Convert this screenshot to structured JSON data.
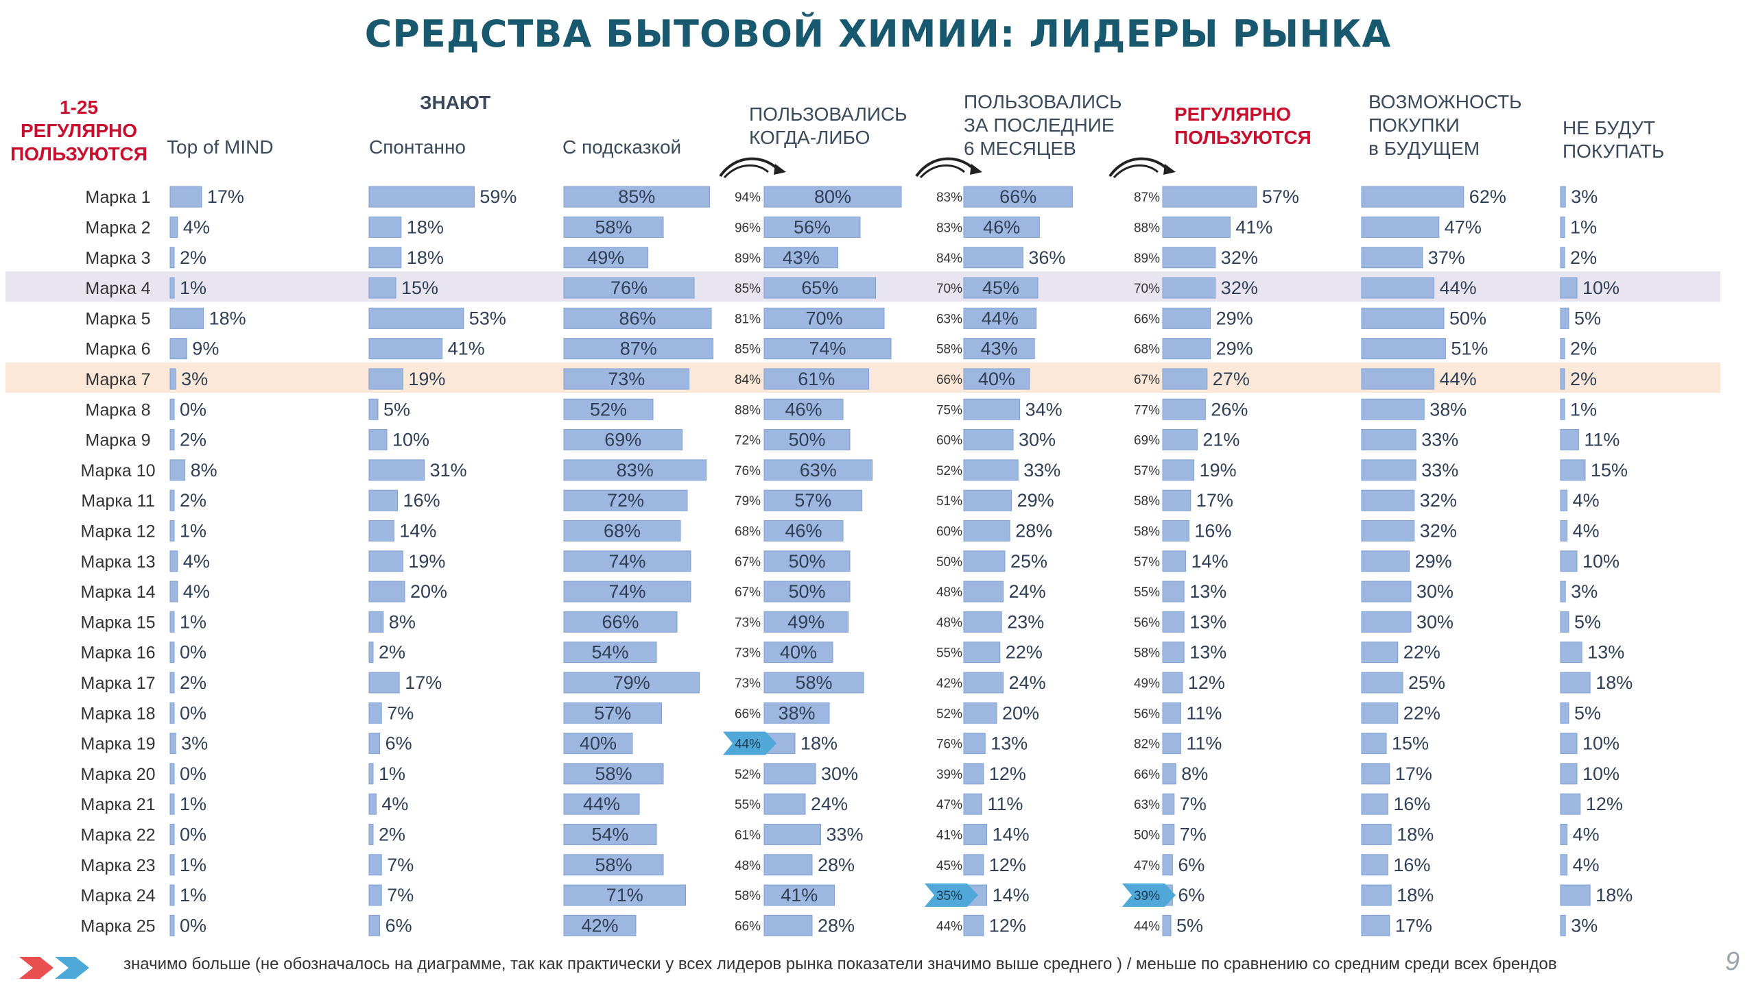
{
  "title": "СРЕДСТВА БЫТОВОЙ ХИМИИ: ЛИДЕРЫ РЫНКА",
  "headers": {
    "brands_col": "1-25\nРЕГУЛЯРНО\nПОЛЬЗУЮТСЯ",
    "group_know": "ЗНАЮТ",
    "top_of_mind": "Top of MIND",
    "spont": "Спонтанно",
    "aided": "С подсказкой",
    "ever": "ПОЛЬЗОВАЛИСЬ\nКОГДА-ЛИБО",
    "last6": "ПОЛЬЗОВАЛИСЬ\nЗА ПОСЛЕДНИЕ\n6 МЕСЯЦЕВ",
    "regular": "РЕГУЛЯРНО\nПОЛЬЗУЮТСЯ",
    "future": "ВОЗМОЖНОСТЬ\nПОКУПКИ\nв БУДУЩЕМ",
    "not_buy": "НЕ БУДУТ\nПОКУПАТЬ"
  },
  "footnote": "значимо больше (не обозначалось на диаграмме, так как практически у всех лидеров рынка показатели значимо выше среднего ) / меньше по сравнению со средним среди всех брендов",
  "page_number": "9",
  "colors": {
    "bar": "#9db7e0",
    "bar_border": "#7f9fcf",
    "highlight_row_4": "#e8e4f0",
    "highlight_row_7": "#fbe8d8",
    "title": "#19596f",
    "red": "#c8102e",
    "chevron_red": "#e8504f",
    "chevron_blue": "#4fa8d8"
  },
  "chart_data": {
    "type": "bar",
    "categories": [
      "Марка 1",
      "Марка 2",
      "Марка 3",
      "Марка 4",
      "Марка 5",
      "Марка 6",
      "Марка 7",
      "Марка 8",
      "Марка 9",
      "Марка 10",
      "Марка 11",
      "Марка 12",
      "Марка 13",
      "Марка 14",
      "Марка 15",
      "Марка 16",
      "Марка 17",
      "Марка 18",
      "Марка 19",
      "Марка 20",
      "Марка 21",
      "Марка 22",
      "Марка 23",
      "Марка 24",
      "Марка 25"
    ],
    "highlighted_rows": [
      "Марка 4",
      "Марка 7"
    ],
    "series": [
      {
        "name": "Top of MIND",
        "values": [
          17,
          4,
          2,
          1,
          18,
          9,
          3,
          0,
          2,
          8,
          2,
          1,
          4,
          4,
          1,
          0,
          2,
          0,
          3,
          0,
          1,
          0,
          1,
          1,
          0
        ]
      },
      {
        "name": "Спонтанно",
        "values": [
          59,
          18,
          18,
          15,
          53,
          41,
          19,
          5,
          10,
          31,
          16,
          14,
          19,
          20,
          8,
          2,
          17,
          7,
          6,
          1,
          4,
          2,
          7,
          7,
          6
        ]
      },
      {
        "name": "С подсказкой",
        "values": [
          85,
          58,
          49,
          76,
          86,
          87,
          73,
          52,
          69,
          83,
          72,
          68,
          74,
          74,
          66,
          54,
          79,
          57,
          40,
          58,
          44,
          54,
          58,
          71,
          42
        ]
      },
      {
        "name": "ПОЛЬЗОВАЛИСЬ КОГДА-ЛИБО",
        "values": [
          80,
          56,
          43,
          65,
          70,
          74,
          61,
          46,
          50,
          63,
          57,
          46,
          50,
          50,
          49,
          40,
          58,
          38,
          18,
          30,
          24,
          33,
          28,
          41,
          28
        ]
      },
      {
        "name": "ПОЛЬЗОВАЛИСЬ ЗА ПОСЛЕДНИЕ 6 МЕСЯЦЕВ",
        "values": [
          66,
          46,
          36,
          45,
          44,
          43,
          40,
          34,
          30,
          33,
          29,
          28,
          25,
          24,
          23,
          22,
          24,
          20,
          13,
          12,
          11,
          14,
          12,
          14,
          12
        ]
      },
      {
        "name": "РЕГУЛЯРНО ПОЛЬЗУЮТСЯ",
        "values": [
          57,
          41,
          32,
          32,
          29,
          29,
          27,
          26,
          21,
          19,
          17,
          16,
          14,
          13,
          13,
          13,
          12,
          11,
          11,
          8,
          7,
          7,
          6,
          6,
          5
        ]
      },
      {
        "name": "ВОЗМОЖНОСТЬ ПОКУПКИ в БУДУЩЕМ",
        "values": [
          62,
          47,
          37,
          44,
          50,
          51,
          44,
          38,
          33,
          33,
          32,
          32,
          29,
          30,
          30,
          22,
          25,
          22,
          15,
          17,
          16,
          18,
          16,
          18,
          17
        ]
      },
      {
        "name": "НЕ БУДУТ ПОКУПАТЬ",
        "values": [
          3,
          1,
          2,
          10,
          5,
          2,
          2,
          1,
          11,
          15,
          4,
          4,
          10,
          3,
          5,
          13,
          18,
          5,
          10,
          10,
          12,
          4,
          4,
          18,
          3
        ]
      }
    ],
    "conversions": [
      {
        "values": [
          94,
          96,
          89,
          85,
          81,
          85,
          84,
          88,
          72,
          76,
          79,
          68,
          67,
          67,
          73,
          73,
          73,
          66,
          44,
          52,
          55,
          61,
          48,
          58,
          66
        ]
      },
      {
        "values": [
          83,
          83,
          84,
          70,
          63,
          58,
          66,
          75,
          60,
          52,
          51,
          60,
          50,
          48,
          48,
          55,
          42,
          52,
          76,
          39,
          47,
          41,
          45,
          35,
          44
        ]
      },
      {
        "values": [
          87,
          88,
          89,
          70,
          66,
          68,
          67,
          77,
          69,
          57,
          58,
          58,
          57,
          55,
          56,
          58,
          49,
          56,
          82,
          66,
          63,
          50,
          47,
          39,
          44
        ]
      }
    ],
    "conversion_flags_less": [
      {
        "series": 0,
        "row": "Марка 19"
      },
      {
        "series": 1,
        "row": "Марка 24"
      },
      {
        "series": 2,
        "row": "Марка 24"
      }
    ],
    "value_format": "percent"
  }
}
